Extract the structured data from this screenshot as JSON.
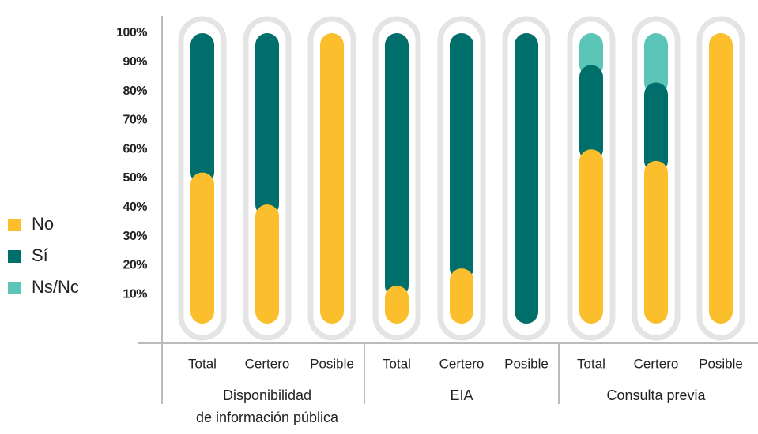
{
  "chart_data": {
    "type": "stacked_bar",
    "groups": [
      {
        "name": "Disponibilidad de información pública",
        "categories": [
          "Total",
          "Certero",
          "Posible"
        ]
      },
      {
        "name": "EIA",
        "categories": [
          "Total",
          "Certero",
          "Posible"
        ]
      },
      {
        "name": "Consulta previa",
        "categories": [
          "Total",
          "Certero",
          "Posible"
        ]
      }
    ],
    "series": [
      {
        "name": "No",
        "color": "#fbbf2e",
        "values": [
          52,
          41,
          100,
          13,
          19,
          0,
          60,
          56,
          100
        ]
      },
      {
        "name": "Sí",
        "color": "#006e6a",
        "values": [
          48,
          59,
          0,
          87,
          81,
          100,
          29,
          27,
          0
        ]
      },
      {
        "name": "Ns/Nc",
        "color": "#5bc6b8",
        "values": [
          0,
          0,
          0,
          0,
          0,
          0,
          11,
          17,
          0
        ]
      }
    ],
    "ylim": [
      0,
      100
    ],
    "yticks": [
      {
        "value": 10,
        "label": "10%"
      },
      {
        "value": 20,
        "label": "20%"
      },
      {
        "value": 30,
        "label": "30%"
      },
      {
        "value": 40,
        "label": "40%"
      },
      {
        "value": 50,
        "label": "50%"
      },
      {
        "value": 60,
        "label": "60%"
      },
      {
        "value": 70,
        "label": "70%"
      },
      {
        "value": 80,
        "label": "80%"
      },
      {
        "value": 90,
        "label": "90%"
      },
      {
        "value": 100,
        "label": "100%"
      }
    ],
    "legend": "left"
  }
}
